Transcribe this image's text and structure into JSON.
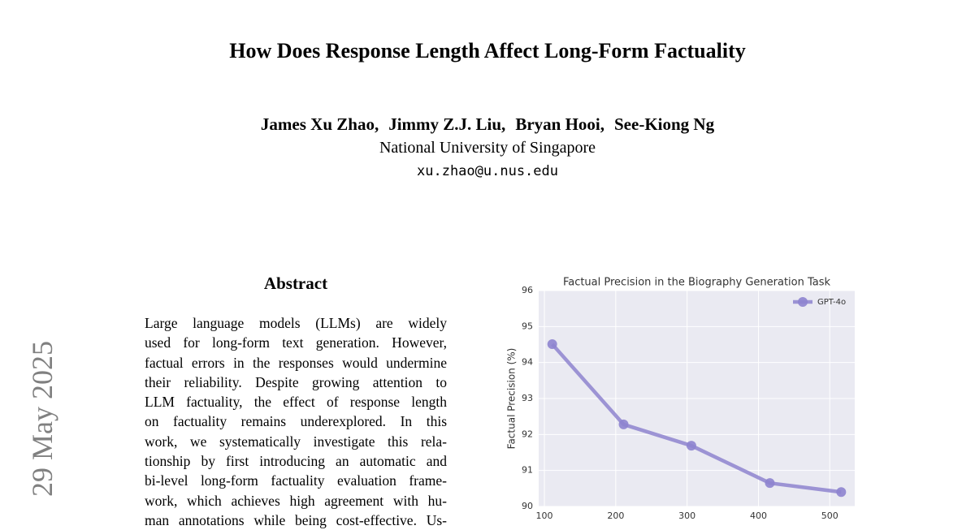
{
  "header": {
    "title": "How Does Response Length Affect Long-Form Factuality",
    "authors": [
      "James Xu Zhao,",
      "Jimmy Z.J. Liu,",
      "Bryan Hooi,",
      "See-Kiong Ng"
    ],
    "affiliation": "National University of Singapore",
    "email": "xu.zhao@u.nus.edu"
  },
  "side_stamp": "29 May 2025",
  "abstract": {
    "heading": "Abstract",
    "lines": [
      "Large language models (LLMs) are widely",
      "used for long-form text generation. However,",
      "factual errors in the responses would undermine",
      "their reliability. Despite growing attention to",
      "LLM factuality, the effect of response length",
      "on factuality remains underexplored. In this",
      "work, we systematically investigate this rela-",
      "tionship by first introducing an automatic and",
      "bi-level long-form factuality evaluation frame-",
      "work, which achieves high agreement with hu-",
      "man annotations while being cost-effective. Us-"
    ]
  },
  "chart_data": {
    "type": "line",
    "title": "Factual Precision in the Biography Generation Task",
    "y_label": "Factual Precision (%)",
    "x": [
      111,
      211,
      306,
      416,
      516
    ],
    "series": [
      {
        "name": "GPT-4o",
        "color": "#8e84cf",
        "values": [
          94.51,
          92.28,
          91.69,
          90.65,
          90.4
        ]
      }
    ],
    "xlim": [
      92,
      535
    ],
    "xticks": [
      100,
      200,
      300,
      400,
      500
    ],
    "ylim": [
      90,
      96
    ],
    "yticks": [
      90,
      91,
      92,
      93,
      94,
      95,
      96
    ],
    "grid": true,
    "legend": "upper right"
  }
}
